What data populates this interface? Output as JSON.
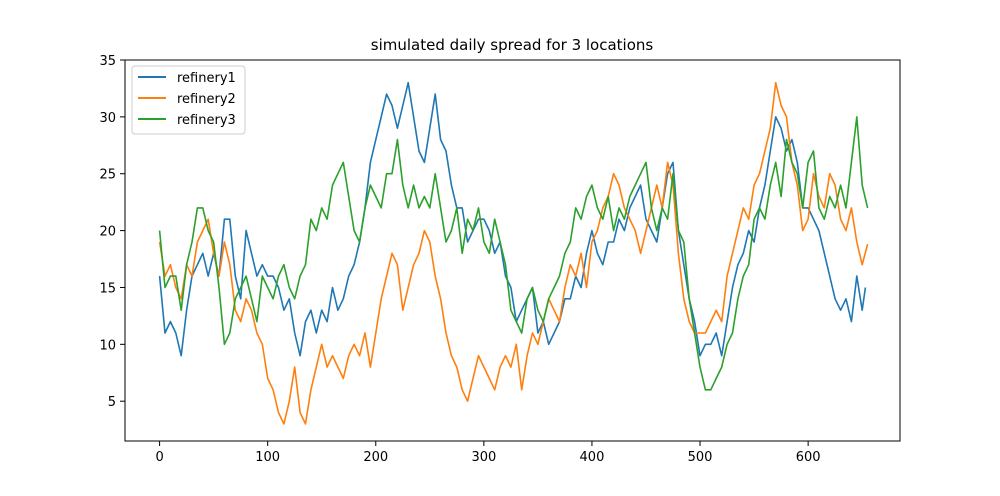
{
  "chart_data": {
    "type": "line",
    "title": "simulated daily spread for 3 locations",
    "xlabel": "",
    "ylabel": "",
    "xlim": [
      -32,
      685
    ],
    "ylim": [
      1.5,
      35
    ],
    "xticks": [
      0,
      100,
      200,
      300,
      400,
      500,
      600
    ],
    "yticks": [
      5,
      10,
      15,
      20,
      25,
      30,
      35
    ],
    "legend": "top-left",
    "grid": false,
    "series": [
      {
        "name": "refinery1",
        "color": "#1f77b4",
        "x": [
          0,
          5,
          10,
          15,
          20,
          25,
          30,
          35,
          40,
          45,
          50,
          55,
          60,
          65,
          70,
          75,
          80,
          85,
          90,
          95,
          100,
          105,
          110,
          115,
          120,
          125,
          130,
          135,
          140,
          145,
          150,
          155,
          160,
          165,
          170,
          175,
          180,
          185,
          190,
          195,
          200,
          205,
          210,
          215,
          220,
          225,
          230,
          235,
          240,
          245,
          250,
          255,
          260,
          265,
          270,
          275,
          280,
          285,
          290,
          295,
          300,
          305,
          310,
          315,
          320,
          325,
          330,
          335,
          340,
          345,
          350,
          355,
          360,
          365,
          370,
          375,
          380,
          385,
          390,
          395,
          400,
          405,
          410,
          415,
          420,
          425,
          430,
          435,
          440,
          445,
          450,
          455,
          460,
          465,
          470,
          475,
          480,
          485,
          490,
          495,
          500,
          505,
          510,
          515,
          520,
          525,
          530,
          535,
          540,
          545,
          550,
          555,
          560,
          565,
          570,
          575,
          580,
          585,
          590,
          595,
          600,
          605,
          610,
          615,
          620,
          625,
          630,
          635,
          640,
          645,
          650,
          653
        ],
        "values": [
          16,
          11,
          12,
          11,
          9,
          13,
          16,
          17,
          18,
          16,
          18,
          16,
          21,
          21,
          16,
          14,
          20,
          18,
          16,
          17,
          16,
          16,
          15,
          13,
          14,
          11,
          9,
          12,
          13,
          11,
          13,
          12,
          15,
          13,
          14,
          16,
          17,
          19,
          22,
          26,
          28,
          30,
          32,
          31,
          29,
          31,
          33,
          30,
          27,
          26,
          29,
          32,
          28,
          27,
          24,
          22,
          22,
          19,
          20,
          21,
          21,
          20,
          18,
          19,
          16,
          15,
          12,
          13,
          14,
          15,
          11,
          12,
          10,
          11,
          12,
          14,
          14,
          16,
          15,
          18,
          20,
          18,
          17,
          19,
          19,
          21,
          20,
          22,
          23,
          24,
          21,
          20,
          19,
          22,
          25,
          26,
          20,
          17,
          14,
          12,
          9,
          10,
          10,
          11,
          9,
          12,
          15,
          17,
          18,
          20,
          19,
          22,
          24,
          27,
          30,
          29,
          27,
          28,
          26,
          22,
          22,
          21,
          20,
          18,
          16,
          14,
          13,
          14,
          12,
          16,
          13,
          15
        ]
      },
      {
        "name": "refinery2",
        "color": "#ff7f0e",
        "x": [
          0,
          5,
          10,
          15,
          20,
          25,
          30,
          35,
          40,
          45,
          50,
          55,
          60,
          65,
          70,
          75,
          80,
          85,
          90,
          95,
          100,
          105,
          110,
          115,
          120,
          125,
          130,
          135,
          140,
          145,
          150,
          155,
          160,
          165,
          170,
          175,
          180,
          185,
          190,
          195,
          200,
          205,
          210,
          215,
          220,
          225,
          230,
          235,
          240,
          245,
          250,
          255,
          260,
          265,
          270,
          275,
          280,
          285,
          290,
          295,
          300,
          305,
          310,
          315,
          320,
          325,
          330,
          335,
          340,
          345,
          350,
          355,
          360,
          365,
          370,
          375,
          380,
          385,
          390,
          395,
          400,
          405,
          410,
          415,
          420,
          425,
          430,
          435,
          440,
          445,
          450,
          455,
          460,
          465,
          470,
          475,
          480,
          485,
          490,
          495,
          500,
          505,
          510,
          515,
          520,
          525,
          530,
          535,
          540,
          545,
          550,
          555,
          560,
          565,
          570,
          575,
          580,
          585,
          590,
          595,
          600,
          605,
          610,
          615,
          620,
          625,
          630,
          635,
          640,
          645,
          650,
          655
        ],
        "values": [
          19,
          16,
          17,
          15,
          14,
          17,
          16,
          19,
          20,
          21,
          18,
          16,
          19,
          17,
          13,
          12,
          14,
          13,
          11,
          10,
          7,
          6,
          4,
          3,
          5,
          8,
          4,
          3,
          6,
          8,
          10,
          8,
          9,
          8,
          7,
          9,
          10,
          9,
          11,
          8,
          11,
          14,
          16,
          18,
          17,
          13,
          15,
          17,
          18,
          20,
          19,
          16,
          14,
          11,
          9,
          8,
          6,
          5,
          7,
          9,
          8,
          7,
          6,
          8,
          9,
          8,
          10,
          6,
          9,
          11,
          10,
          12,
          14,
          13,
          12,
          15,
          17,
          16,
          18,
          15,
          19,
          20,
          22,
          23,
          25,
          24,
          22,
          21,
          20,
          18,
          20,
          22,
          24,
          22,
          26,
          24,
          18,
          14,
          12,
          11,
          11,
          11,
          12,
          13,
          12,
          16,
          18,
          20,
          22,
          21,
          24,
          25,
          27,
          29,
          33,
          31,
          30,
          26,
          24,
          20,
          21,
          25,
          23,
          22,
          25,
          24,
          21,
          20,
          22,
          19,
          17,
          18.8
        ]
      },
      {
        "name": "refinery3",
        "color": "#2ca02c",
        "x": [
          0,
          5,
          10,
          15,
          20,
          25,
          30,
          35,
          40,
          45,
          50,
          55,
          60,
          65,
          70,
          75,
          80,
          85,
          90,
          95,
          100,
          105,
          110,
          115,
          120,
          125,
          130,
          135,
          140,
          145,
          150,
          155,
          160,
          165,
          170,
          175,
          180,
          185,
          190,
          195,
          200,
          205,
          210,
          215,
          220,
          225,
          230,
          235,
          240,
          245,
          250,
          255,
          260,
          265,
          270,
          275,
          280,
          285,
          290,
          295,
          300,
          305,
          310,
          315,
          320,
          325,
          330,
          335,
          340,
          345,
          350,
          355,
          360,
          365,
          370,
          375,
          380,
          385,
          390,
          395,
          400,
          405,
          410,
          415,
          420,
          425,
          430,
          435,
          440,
          445,
          450,
          455,
          460,
          465,
          470,
          475,
          480,
          485,
          490,
          495,
          500,
          505,
          510,
          515,
          520,
          525,
          530,
          535,
          540,
          545,
          550,
          555,
          560,
          565,
          570,
          575,
          580,
          585,
          590,
          595,
          600,
          605,
          610,
          615,
          620,
          625,
          630,
          635,
          640,
          645,
          650,
          655
        ],
        "values": [
          20,
          15,
          16,
          16,
          13,
          17,
          19,
          22,
          22,
          20,
          19,
          15,
          10,
          11,
          14,
          15,
          16,
          14,
          12,
          16,
          15,
          14,
          16,
          17,
          15,
          14,
          16,
          17,
          21,
          20,
          22,
          21,
          24,
          25,
          26,
          23,
          20,
          19,
          22,
          24,
          23,
          22,
          25,
          25,
          28,
          24,
          22,
          24,
          22,
          23,
          22,
          25,
          22,
          19,
          20,
          22,
          18,
          21,
          20,
          22,
          19,
          18,
          21,
          19,
          17,
          13,
          12,
          11,
          14,
          15,
          13,
          12,
          14,
          15,
          16,
          18,
          19,
          22,
          21,
          23,
          24,
          22,
          21,
          23,
          20,
          22,
          21,
          23,
          24,
          25,
          26,
          22,
          20,
          22,
          21,
          25,
          20,
          19,
          14,
          11,
          8,
          6,
          6,
          7,
          8,
          10,
          11,
          14,
          16,
          17,
          21,
          22,
          21,
          24,
          26,
          23,
          28,
          26,
          25,
          22,
          26,
          27,
          22,
          21,
          23,
          22,
          24,
          22,
          26,
          30,
          24,
          22
        ]
      }
    ]
  }
}
